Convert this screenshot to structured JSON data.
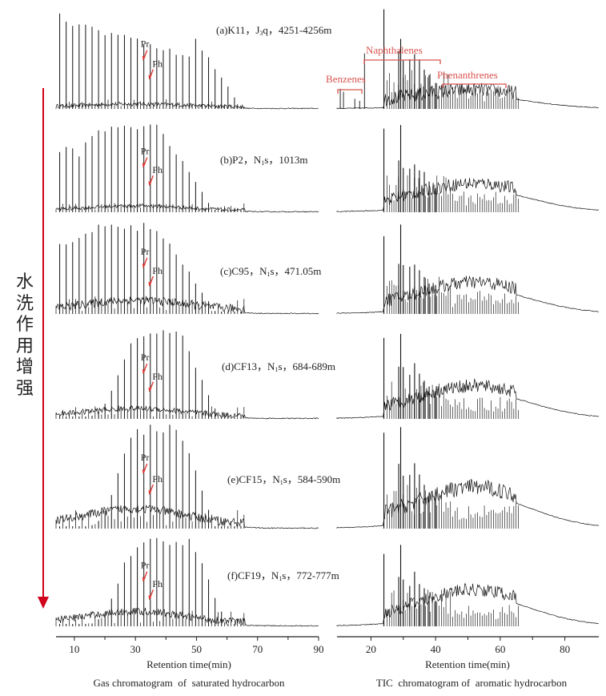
{
  "chart_data": [
    {
      "type": "line",
      "title": "Gas chromatogram  of  saturated hydrocarbon",
      "xlabel": "Retention time(min)",
      "ylabel": "",
      "xlim": [
        4,
        90
      ],
      "xticks": [
        10,
        30,
        50,
        70,
        90
      ],
      "xtick_minor": [
        20,
        40,
        60,
        80
      ],
      "peak_markers": [
        "Pr",
        "Ph"
      ],
      "series": [
        {
          "name": "(a)K11，J3q，4251-4256m",
          "label_parts": {
            "pre": "(a)K11，J",
            "sub": "3",
            "post": "q，4251-4256m"
          }
        },
        {
          "name": "(b)P2，N1s，1013m",
          "label_parts": {
            "pre": "(b)P2，N",
            "sub": "1",
            "post": "s，1013m"
          }
        },
        {
          "name": "(c)C95，N1s，471.05m",
          "label_parts": {
            "pre": "(c)C95，N",
            "sub": "1",
            "post": "s，471.05m"
          }
        },
        {
          "name": "(d)CF13，N1s，684-689m",
          "label_parts": {
            "pre": "(d)CF13，N",
            "sub": "1",
            "post": "s，684-689m"
          }
        },
        {
          "name": "(e)CF15，N1s，584-590m",
          "label_parts": {
            "pre": "(e)CF15，N",
            "sub": "1",
            "post": "s，584-590m"
          }
        },
        {
          "name": "(f)CF19，N1s，772-777m",
          "label_parts": {
            "pre": "(f)CF19，N",
            "sub": "1",
            "post": "s，772-777m"
          }
        }
      ]
    },
    {
      "type": "line",
      "title": "TIC  chromatogram of  aromatic hydrocarbon",
      "xlabel": "Retention time(min)",
      "ylabel": "",
      "xlim": [
        9.5,
        90.5
      ],
      "xticks": [
        20,
        40,
        60,
        80
      ],
      "xtick_minor": [
        30,
        50,
        70
      ],
      "compound_groups": [
        {
          "name": "Benzenes",
          "range": [
            10,
            18
          ]
        },
        {
          "name": "Naphthalenes",
          "range": [
            18,
            42
          ]
        },
        {
          "name": "Phenanthrenes",
          "range": [
            42,
            62
          ]
        }
      ],
      "series": [
        "(a)",
        "(b)",
        "(c)",
        "(d)",
        "(e)",
        "(f)"
      ]
    }
  ],
  "side_annotation": {
    "text": "水洗作用增强",
    "chars": [
      "水",
      "洗",
      "作",
      "用",
      "增",
      "强"
    ],
    "arrow_color": "#d0021b"
  },
  "colors": {
    "trace": "#111111",
    "marker": "#e53935",
    "group": "#d9534f"
  }
}
